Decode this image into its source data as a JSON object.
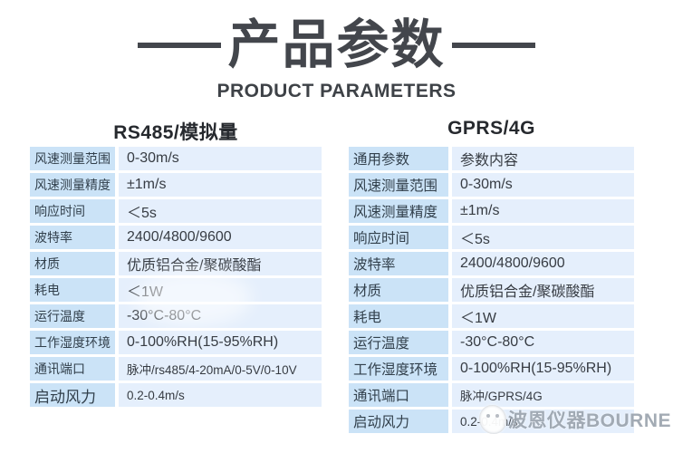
{
  "header": {
    "title": "产品参数",
    "subtitle": "PRODUCT PARAMETERS"
  },
  "tables": [
    {
      "title": "RS485/模拟量",
      "rows": [
        {
          "label": "风速测量范围",
          "value": "0-30m/s"
        },
        {
          "label": "风速测量精度",
          "value": "±1m/s"
        },
        {
          "label": "响应时间",
          "value": "＜5s"
        },
        {
          "label": "波特率",
          "value": "2400/4800/9600"
        },
        {
          "label": "材质",
          "value": "优质铝合金/聚碳酸酯"
        },
        {
          "label": "耗电",
          "value": "＜1W"
        },
        {
          "label": "运行温度",
          "value": "-30°C-80°C"
        },
        {
          "label": "工作湿度环境",
          "value": "0-100%RH(15-95%RH)"
        },
        {
          "label": "通讯端口",
          "value": "脉冲/rs485/4-20mA/0-5V/0-10V"
        },
        {
          "label": "启动风力",
          "value": "0.2-0.4m/s"
        }
      ]
    },
    {
      "title": "GPRS/4G",
      "rows": [
        {
          "label": "通用参数",
          "value": "参数内容"
        },
        {
          "label": "风速测量范围",
          "value": "0-30m/s"
        },
        {
          "label": "风速测量精度",
          "value": "±1m/s"
        },
        {
          "label": "响应时间",
          "value": "＜5s"
        },
        {
          "label": "波特率",
          "value": "2400/4800/9600"
        },
        {
          "label": "材质",
          "value": "优质铝合金/聚碳酸酯"
        },
        {
          "label": "耗电",
          "value": "＜1W"
        },
        {
          "label": "运行温度",
          "value": "-30°C-80°C"
        },
        {
          "label": "工作湿度环境",
          "value": "0-100%RH(15-95%RH)"
        },
        {
          "label": "通讯端口",
          "value": "脉冲/GPRS/4G"
        },
        {
          "label": "启动风力",
          "value": "0.2-0.4m/s"
        }
      ]
    }
  ],
  "watermark": {
    "logo_icon": "bourne-mascot-icon",
    "text": "波恩仪器BOURNE"
  },
  "colors": {
    "title_text": "#43464c",
    "label_cell_bg": "#cbe3f7",
    "value_cell_bg": "#e5effc",
    "cell_text": "#373c43"
  }
}
